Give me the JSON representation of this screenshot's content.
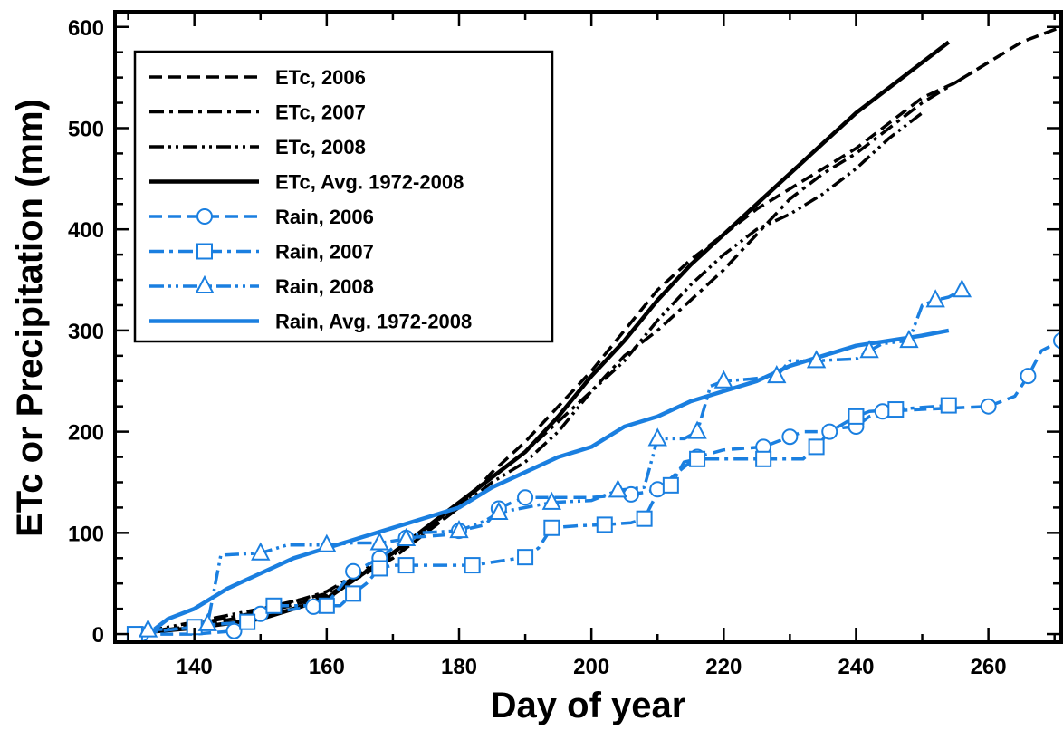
{
  "chart_data": {
    "type": "line",
    "xlabel": "Day of year",
    "ylabel": "ETc or Precipitation (mm)",
    "xlim": [
      128,
      271
    ],
    "ylim": [
      -8,
      615
    ],
    "xticks": [
      140,
      160,
      180,
      200,
      220,
      240,
      260
    ],
    "yticks": [
      0,
      100,
      200,
      300,
      400,
      500,
      600
    ],
    "grid": false,
    "legend_position": "top-left",
    "series": [
      {
        "name": "ETc, 2006",
        "color": "#000000",
        "dash": "dash",
        "marker": "none",
        "x": [
          133,
          140,
          150,
          160,
          170,
          180,
          185,
          190,
          195,
          200,
          205,
          210,
          215,
          220,
          225,
          230,
          235,
          240,
          245,
          250,
          255,
          260,
          265,
          271
        ],
        "y": [
          2,
          8,
          20,
          38,
          75,
          125,
          160,
          190,
          225,
          260,
          300,
          340,
          370,
          395,
          420,
          440,
          460,
          480,
          505,
          530,
          545,
          565,
          585,
          600
        ]
      },
      {
        "name": "ETc, 2007",
        "color": "#000000",
        "dash": "dashdot",
        "marker": "none",
        "x": [
          134,
          140,
          150,
          160,
          170,
          180,
          185,
          190,
          195,
          200,
          205,
          210,
          215,
          220,
          225,
          230,
          235,
          240,
          245,
          250,
          255,
          260
        ],
        "y": [
          3,
          10,
          22,
          42,
          80,
          128,
          155,
          180,
          210,
          240,
          275,
          300,
          330,
          360,
          395,
          430,
          455,
          475,
          500,
          525,
          545,
          565
        ]
      },
      {
        "name": "ETc, 2008",
        "color": "#000000",
        "dash": "dashdotdot",
        "marker": "none",
        "x": [
          133,
          140,
          150,
          160,
          170,
          180,
          185,
          190,
          195,
          200,
          205,
          210,
          215,
          220,
          225,
          230,
          235,
          240,
          245,
          250
        ],
        "y": [
          3,
          12,
          25,
          40,
          78,
          125,
          150,
          170,
          200,
          240,
          270,
          310,
          345,
          375,
          400,
          415,
          435,
          460,
          490,
          515
        ]
      },
      {
        "name": "ETc, Avg. 1972-2008",
        "color": "#000000",
        "dash": "solid",
        "marker": "none",
        "x": [
          133,
          140,
          150,
          160,
          170,
          180,
          185,
          190,
          195,
          200,
          205,
          210,
          215,
          220,
          225,
          230,
          235,
          240,
          245,
          250,
          254
        ],
        "y": [
          2,
          6,
          15,
          35,
          80,
          130,
          155,
          180,
          215,
          255,
          290,
          330,
          365,
          395,
          425,
          455,
          485,
          515,
          540,
          565,
          585
        ]
      },
      {
        "name": "Rain, 2006",
        "color": "#1a7fe0",
        "dash": "dash",
        "marker": "circle",
        "x": [
          132,
          140,
          146,
          148,
          150,
          152,
          158,
          160,
          164,
          166,
          168,
          170,
          172,
          178,
          180,
          184,
          186,
          188,
          190,
          200,
          206,
          208,
          210,
          214,
          216,
          220,
          226,
          228,
          230,
          232,
          236,
          238,
          240,
          242,
          244,
          250,
          260,
          264,
          266,
          268,
          271
        ],
        "y": [
          0,
          0,
          3,
          15,
          20,
          22,
          27,
          30,
          62,
          68,
          75,
          85,
          95,
          98,
          102,
          108,
          124,
          130,
          135,
          135,
          138,
          140,
          143,
          165,
          175,
          182,
          185,
          190,
          195,
          200,
          200,
          204,
          205,
          215,
          220,
          222,
          225,
          235,
          255,
          280,
          290
        ]
      },
      {
        "name": "Rain, 2007",
        "color": "#1a7fe0",
        "dash": "dashdot",
        "marker": "square",
        "x": [
          131,
          136,
          140,
          142,
          148,
          150,
          152,
          156,
          160,
          162,
          164,
          166,
          168,
          170,
          172,
          176,
          182,
          186,
          190,
          192,
          194,
          198,
          202,
          206,
          208,
          210,
          212,
          214,
          216,
          222,
          226,
          232,
          234,
          236,
          240,
          242,
          246,
          250,
          254
        ],
        "y": [
          0,
          4,
          7,
          9,
          12,
          20,
          28,
          28,
          28,
          28,
          40,
          50,
          65,
          68,
          68,
          68,
          68,
          72,
          76,
          85,
          105,
          107,
          108,
          110,
          114,
          140,
          147,
          170,
          173,
          173,
          173,
          173,
          185,
          200,
          215,
          220,
          222,
          224,
          226
        ]
      },
      {
        "name": "Rain, 2008",
        "color": "#1a7fe0",
        "dash": "dashdotdot",
        "marker": "triangle",
        "x": [
          133,
          140,
          142,
          144,
          150,
          154,
          160,
          164,
          168,
          170,
          172,
          174,
          180,
          184,
          186,
          190,
          194,
          200,
          204,
          208,
          210,
          214,
          216,
          218,
          220,
          224,
          228,
          230,
          234,
          240,
          242,
          244,
          248,
          250,
          252,
          254,
          256
        ],
        "y": [
          4,
          6,
          10,
          78,
          80,
          88,
          88,
          90,
          90,
          92,
          94,
          100,
          102,
          112,
          120,
          125,
          130,
          132,
          142,
          145,
          193,
          193,
          200,
          245,
          250,
          252,
          255,
          270,
          270,
          272,
          280,
          287,
          290,
          325,
          330,
          333,
          340
        ]
      },
      {
        "name": "Rain,   Avg. 1972-2008",
        "color": "#1a7fe0",
        "dash": "solid",
        "marker": "none",
        "x": [
          134,
          136,
          140,
          145,
          150,
          155,
          160,
          165,
          170,
          175,
          180,
          185,
          190,
          195,
          200,
          205,
          210,
          215,
          220,
          225,
          230,
          235,
          240,
          245,
          250,
          254
        ],
        "y": [
          5,
          15,
          25,
          45,
          60,
          75,
          85,
          95,
          105,
          115,
          125,
          145,
          160,
          175,
          185,
          205,
          215,
          230,
          240,
          250,
          265,
          275,
          285,
          290,
          295,
          300
        ]
      }
    ]
  }
}
